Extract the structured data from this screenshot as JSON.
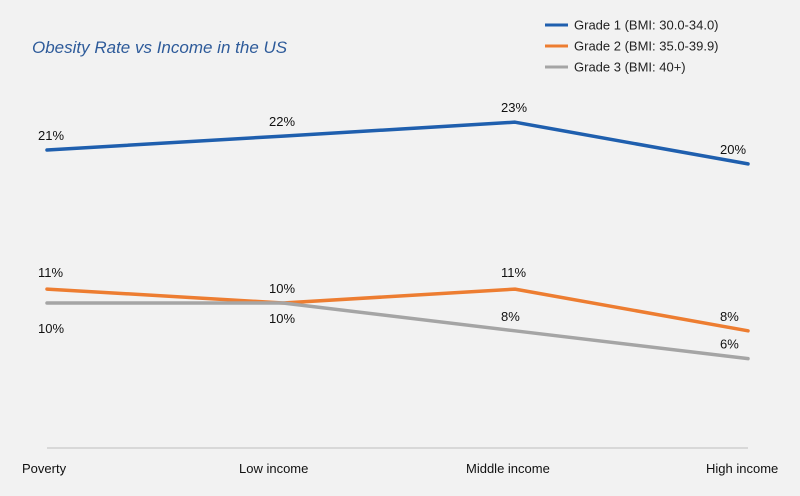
{
  "colors": {
    "title": "#2e5b9a",
    "background": "#f2f2f2",
    "axis": "#bfbfbf"
  },
  "chart_data": {
    "type": "line",
    "title": "Obesity Rate vs Income in the US",
    "xlabel": "",
    "ylabel": "",
    "categories": [
      "Poverty",
      "Low income",
      "Middle income",
      "High income"
    ],
    "ylim": [
      0,
      25
    ],
    "grid": false,
    "legend": "top-right",
    "series": [
      {
        "name": "Grade 1 (BMI: 30.0-34.0)",
        "color": "#1f5fae",
        "values": [
          21,
          22,
          23,
          20
        ],
        "labels": [
          "21%",
          "22%",
          "23%",
          "20%"
        ]
      },
      {
        "name": "Grade 2 (BMI: 35.0-39.9)",
        "color": "#ed7d31",
        "values": [
          11,
          10,
          11,
          8
        ],
        "labels": [
          "11%",
          "10%",
          "11%",
          "8%"
        ]
      },
      {
        "name": "Grade 3 (BMI: 40+)",
        "color": "#a5a5a5",
        "values": [
          10,
          10,
          8,
          6
        ],
        "labels": [
          "10%",
          "10%",
          "8%",
          "6%"
        ]
      }
    ]
  }
}
